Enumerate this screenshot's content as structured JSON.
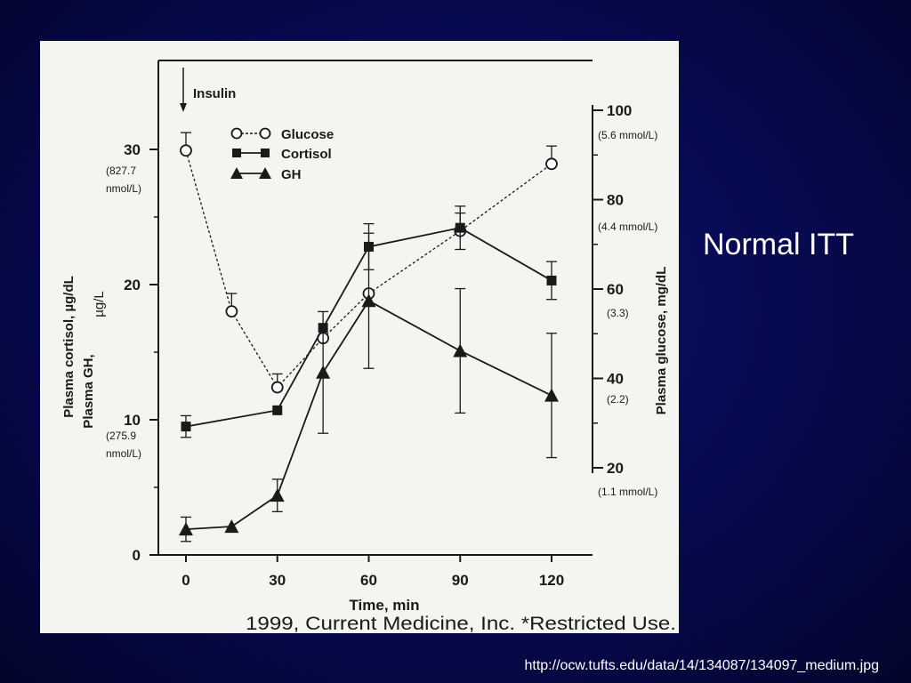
{
  "slide": {
    "title": "Normal ITT",
    "source_url": "http://ocw.tufts.edu/data/14/134087/134097_medium.jpg",
    "background_color": "#06094e",
    "panel_color": "#f4f4f1"
  },
  "chart_data": {
    "type": "line",
    "x": [
      0,
      15,
      30,
      45,
      60,
      90,
      120
    ],
    "xlabel": "Time, min",
    "xticks": [
      0,
      30,
      60,
      90,
      120
    ],
    "xlim": [
      -8,
      128
    ],
    "left_axis": {
      "label_line1": "Plasma cortisol, µg/dL",
      "label_line2": "Plasma GH,",
      "label_added": "µg/L",
      "ticks": [
        0,
        10,
        20,
        30
      ],
      "ylim": [
        0,
        34
      ],
      "annotations": [
        {
          "value": 28,
          "line1": "(827.7",
          "line2": "nmol/L)"
        },
        {
          "value": 8,
          "line1": "(275.9",
          "line2": "nmol/L)"
        }
      ]
    },
    "right_axis": {
      "label": "Plasma glucose, mg/dL",
      "ticks": [
        20,
        40,
        60,
        80,
        100
      ],
      "ylim": [
        2,
        104
      ],
      "annotations": [
        {
          "value": 95,
          "text": "(5.6 mmol/L)"
        },
        {
          "value": 74,
          "text": "(4.4 mmol/L)"
        },
        {
          "value": 55,
          "text": "(3.3)"
        },
        {
          "value": 35,
          "text": "(2.2)"
        },
        {
          "value": 15,
          "text": "(1.1 mmol/L)"
        }
      ]
    },
    "annotation_insulin": {
      "text": "Insulin",
      "x": 0
    },
    "series": [
      {
        "name": "Glucose",
        "axis": "right",
        "marker": "open-circle",
        "line": "dashed",
        "points": [
          {
            "x": 0,
            "y": 91,
            "err": 4
          },
          {
            "x": 15,
            "y": 55,
            "err": 4
          },
          {
            "x": 30,
            "y": 38,
            "err": 3
          },
          {
            "x": 45,
            "y": 49,
            "err": 0
          },
          {
            "x": 60,
            "y": 59,
            "err": 0
          },
          {
            "x": 90,
            "y": 73,
            "err": 4
          },
          {
            "x": 120,
            "y": 88,
            "err": 4
          }
        ]
      },
      {
        "name": "Cortisol",
        "axis": "left",
        "marker": "filled-square",
        "line": "solid",
        "points": [
          {
            "x": 0,
            "y": 9.5,
            "err": 0.8
          },
          {
            "x": 30,
            "y": 10.7,
            "err": 0
          },
          {
            "x": 45,
            "y": 16.8,
            "err": 0
          },
          {
            "x": 60,
            "y": 22.8,
            "err": 1.7
          },
          {
            "x": 90,
            "y": 24.2,
            "err": 1.6
          },
          {
            "x": 120,
            "y": 20.3,
            "err": 1.4
          }
        ]
      },
      {
        "name": "GH",
        "axis": "left",
        "marker": "filled-triangle",
        "line": "solid",
        "points": [
          {
            "x": 0,
            "y": 1.9,
            "err": 0.9
          },
          {
            "x": 15,
            "y": 2.1,
            "err": 0
          },
          {
            "x": 30,
            "y": 4.4,
            "err": 1.2
          },
          {
            "x": 45,
            "y": 13.5,
            "err": 4.5
          },
          {
            "x": 60,
            "y": 18.8,
            "err": 5
          },
          {
            "x": 90,
            "y": 15.1,
            "err": 4.6
          },
          {
            "x": 120,
            "y": 11.8,
            "err": 4.6
          }
        ]
      }
    ],
    "copyright": "1999, Current Medicine, Inc. *Restricted Use."
  }
}
